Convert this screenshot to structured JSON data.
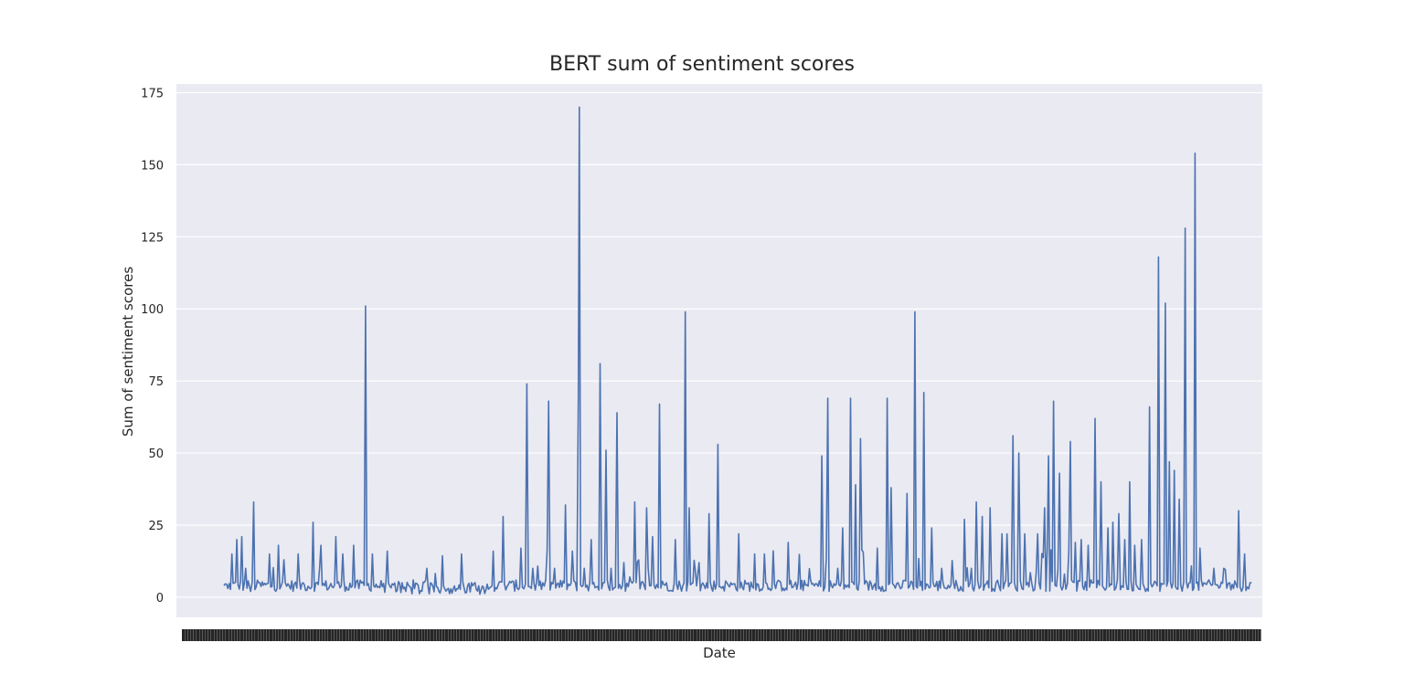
{
  "chart_data": {
    "type": "line",
    "title": "BERT sum of sentiment scores",
    "xlabel": "Date",
    "ylabel": "Sum of sentiment scores",
    "y_ticks": [
      0,
      25,
      50,
      75,
      100,
      125,
      150,
      175
    ],
    "ylim": [
      -7,
      178
    ],
    "grid": true,
    "background": "#eaeaf2",
    "line_color": "#4c72b0",
    "x_tick_labels_note": "dense overlapping date tick labels (illegible)",
    "series": [
      {
        "peaks": [
          [
            0.0,
            4
          ],
          [
            0.004,
            3
          ],
          [
            0.008,
            15
          ],
          [
            0.013,
            20
          ],
          [
            0.018,
            21
          ],
          [
            0.022,
            10
          ],
          [
            0.027,
            2
          ],
          [
            0.03,
            33
          ],
          [
            0.035,
            5
          ],
          [
            0.046,
            15
          ],
          [
            0.055,
            18
          ],
          [
            0.062,
            5
          ],
          [
            0.075,
            15
          ],
          [
            0.08,
            5
          ],
          [
            0.09,
            26
          ],
          [
            0.098,
            18
          ],
          [
            0.113,
            21
          ],
          [
            0.12,
            15
          ],
          [
            0.131,
            18
          ],
          [
            0.143,
            101
          ],
          [
            0.15,
            15
          ],
          [
            0.165,
            16
          ],
          [
            0.18,
            5
          ],
          [
            0.205,
            10
          ],
          [
            0.24,
            15
          ],
          [
            0.25,
            5
          ],
          [
            0.272,
            16
          ],
          [
            0.282,
            28
          ],
          [
            0.29,
            5
          ],
          [
            0.3,
            17
          ],
          [
            0.306,
            74
          ],
          [
            0.312,
            10
          ],
          [
            0.322,
            5
          ],
          [
            0.328,
            68
          ],
          [
            0.334,
            10
          ],
          [
            0.345,
            32
          ],
          [
            0.352,
            16
          ],
          [
            0.358,
            69
          ],
          [
            0.359,
            170
          ],
          [
            0.364,
            10
          ],
          [
            0.371,
            20
          ],
          [
            0.38,
            81
          ],
          [
            0.386,
            51
          ],
          [
            0.391,
            10
          ],
          [
            0.397,
            64
          ],
          [
            0.404,
            12
          ],
          [
            0.41,
            7
          ],
          [
            0.415,
            33
          ],
          [
            0.427,
            31
          ],
          [
            0.433,
            21
          ],
          [
            0.44,
            67
          ],
          [
            0.447,
            5
          ],
          [
            0.456,
            20
          ],
          [
            0.466,
            99
          ],
          [
            0.47,
            31
          ],
          [
            0.48,
            12
          ],
          [
            0.49,
            29
          ],
          [
            0.499,
            53
          ],
          [
            0.508,
            5
          ],
          [
            0.52,
            22
          ],
          [
            0.546,
            15
          ],
          [
            0.57,
            19
          ],
          [
            0.58,
            5
          ],
          [
            0.604,
            49
          ],
          [
            0.61,
            69
          ],
          [
            0.62,
            10
          ],
          [
            0.625,
            24
          ],
          [
            0.633,
            69
          ],
          [
            0.638,
            39
          ],
          [
            0.643,
            55
          ],
          [
            0.65,
            5
          ],
          [
            0.66,
            17
          ],
          [
            0.67,
            69
          ],
          [
            0.674,
            38
          ],
          [
            0.681,
            5
          ],
          [
            0.69,
            36
          ],
          [
            0.698,
            99
          ],
          [
            0.707,
            71
          ],
          [
            0.715,
            24
          ],
          [
            0.725,
            10
          ],
          [
            0.737,
            5
          ],
          [
            0.748,
            27
          ],
          [
            0.755,
            10
          ],
          [
            0.76,
            33
          ],
          [
            0.766,
            28
          ],
          [
            0.774,
            31
          ],
          [
            0.78,
            5
          ],
          [
            0.786,
            22
          ],
          [
            0.791,
            22
          ],
          [
            0.797,
            56
          ],
          [
            0.803,
            50
          ],
          [
            0.809,
            22
          ],
          [
            0.816,
            5
          ],
          [
            0.822,
            22
          ],
          [
            0.829,
            31
          ],
          [
            0.833,
            49
          ],
          [
            0.838,
            68
          ],
          [
            0.844,
            43
          ],
          [
            0.849,
            8
          ],
          [
            0.855,
            54
          ],
          [
            0.86,
            19
          ],
          [
            0.866,
            20
          ],
          [
            0.873,
            18
          ],
          [
            0.88,
            62
          ],
          [
            0.886,
            40
          ],
          [
            0.893,
            24
          ],
          [
            0.898,
            26
          ],
          [
            0.904,
            29
          ],
          [
            0.91,
            20
          ],
          [
            0.915,
            40
          ],
          [
            0.92,
            18
          ],
          [
            0.927,
            20
          ],
          [
            0.935,
            66
          ],
          [
            0.944,
            118
          ],
          [
            0.951,
            102
          ],
          [
            0.955,
            47
          ],
          [
            0.96,
            44
          ],
          [
            0.965,
            34
          ],
          [
            0.971,
            128
          ],
          [
            0.981,
            154
          ],
          [
            0.986,
            17
          ],
          [
            0.99,
            5
          ],
          [
            1.0,
            10
          ],
          [
            1.01,
            10
          ],
          [
            1.016,
            5
          ],
          [
            1.025,
            30
          ],
          [
            1.031,
            15
          ],
          [
            1.038,
            5
          ]
        ]
      }
    ]
  }
}
